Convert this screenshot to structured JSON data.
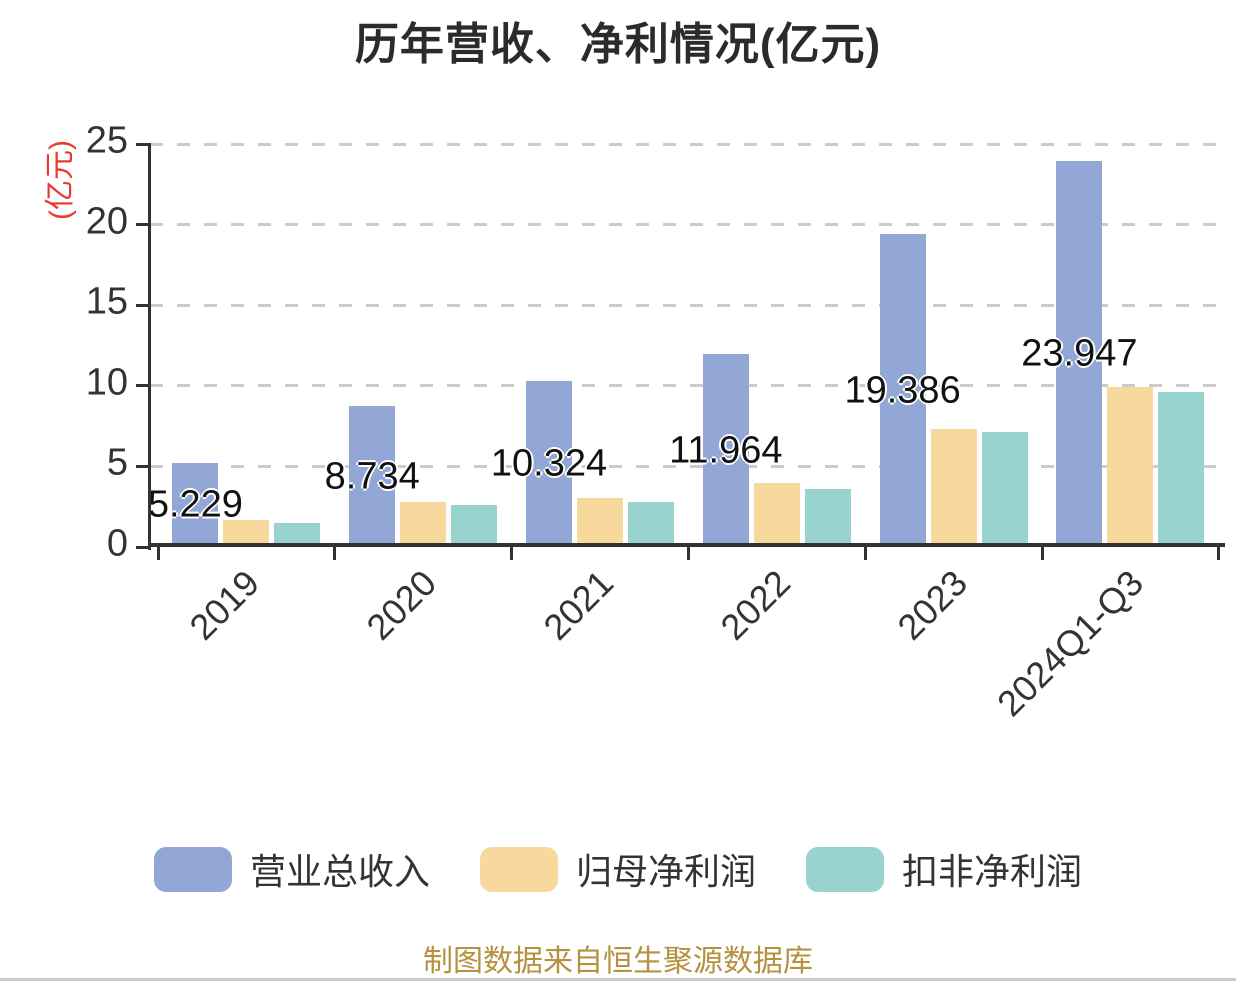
{
  "page": {
    "background": "#ffffff"
  },
  "title": {
    "text": "历年营收、净利情况(亿元)",
    "color": "#2b2b2b"
  },
  "y_axis": {
    "unit_label": "(亿元)",
    "unit_label_color": "#e83a2f",
    "tick_labels": [
      "0",
      "5",
      "10",
      "15",
      "20",
      "25"
    ],
    "tick_color": "#333333"
  },
  "x_axis": {
    "categories": [
      "2019",
      "2020",
      "2021",
      "2022",
      "2023",
      "2024Q1-Q3"
    ]
  },
  "legend": {
    "items": [
      {
        "label": "营业总收入",
        "color": "#92a7d6"
      },
      {
        "label": "归母净利润",
        "color": "#f8d99d"
      },
      {
        "label": "扣非净利润",
        "color": "#98d3d0"
      }
    ]
  },
  "footer": {
    "source_text": "制图数据来自恒生聚源数据库",
    "color": "#b6913f"
  },
  "chart_data": {
    "type": "bar",
    "title": "历年营收、净利情况(亿元)",
    "categories": [
      "2019",
      "2020",
      "2021",
      "2022",
      "2023",
      "2024Q1-Q3"
    ],
    "series": [
      {
        "name": "营业总收入",
        "color": "#92a7d6",
        "values": [
          5.229,
          8.734,
          10.324,
          11.964,
          19.386,
          23.947
        ],
        "labels": [
          "5.229",
          "8.734",
          "10.324",
          "11.964",
          "19.386",
          "23.947"
        ]
      },
      {
        "name": "归母净利润",
        "color": "#f8d99d",
        "values": [
          1.7,
          2.8,
          3.05,
          4.0,
          7.3,
          9.9
        ]
      },
      {
        "name": "扣非净利润",
        "color": "#98d3d0",
        "values": [
          1.5,
          2.6,
          2.8,
          3.6,
          7.15,
          9.6
        ]
      }
    ],
    "ylim": [
      0,
      25
    ],
    "yticks": [
      0,
      5,
      10,
      15,
      20,
      25
    ],
    "ylabel": "(亿元)",
    "xlabel": "",
    "grid": "horizontal-dashed",
    "grid_color": "#cccccc",
    "axis_color": "#333333",
    "legend_position": "bottom",
    "value_labels_shown_for": "营业总收入"
  }
}
